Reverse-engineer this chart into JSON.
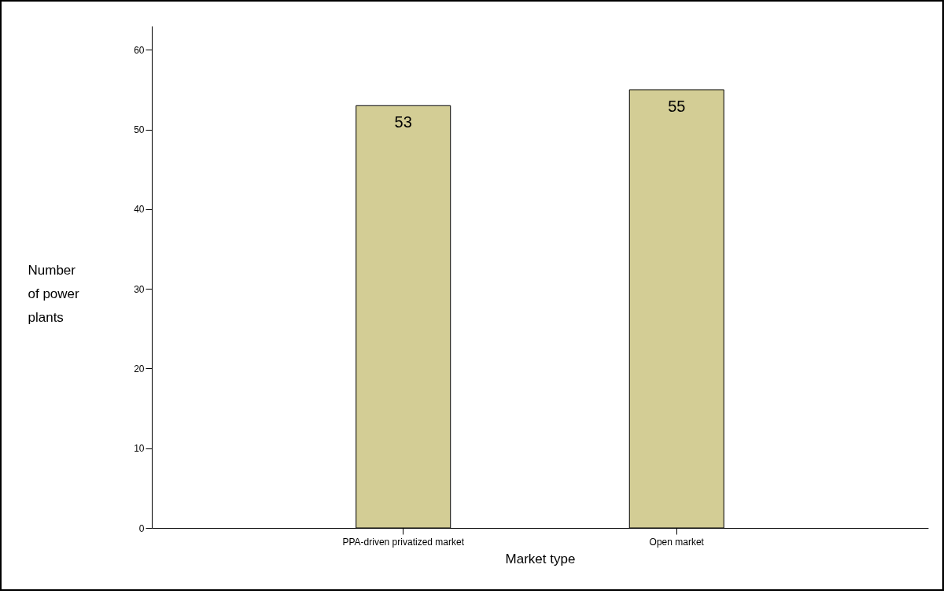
{
  "chart_data": {
    "type": "bar",
    "xlabel": "Market type",
    "ylabel": "Number of power plants",
    "categories": [
      "PPA-driven privatized market",
      "Open market"
    ],
    "values": [
      53,
      55
    ],
    "color": "#d3cd95",
    "ylim": [
      0,
      63
    ],
    "yticks": [
      0,
      10,
      20,
      30,
      40,
      50,
      60
    ],
    "data_labels": true
  }
}
